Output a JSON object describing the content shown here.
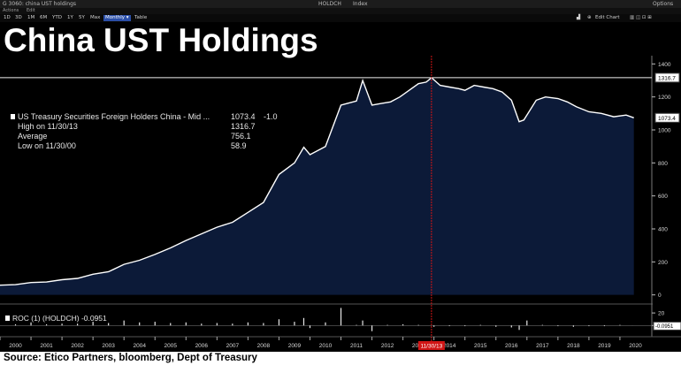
{
  "window": {
    "title": "G 3060: china UST holdings",
    "ticker": "HOLDCH",
    "ticker_type": "Index",
    "options_label": "Options"
  },
  "menu": {
    "actions_label": "Actions",
    "edit_label": "Edit"
  },
  "toolbar": {
    "ranges": [
      "1D",
      "3D",
      "1M",
      "6M",
      "YTD",
      "1Y",
      "5Y",
      "Max"
    ],
    "period_label": "Monthly",
    "table_label": "Table",
    "edit_chart_label": "Edit Chart"
  },
  "headline": "China UST Holdings",
  "legend": {
    "series_label": "US Treasury Securities Foreign Holders China - Mid ...",
    "series_value": "1073.4",
    "series_change": "-1.0",
    "high_label": "High on 11/30/13",
    "high_value": "1316.7",
    "average_label": "Average",
    "average_value": "756.1",
    "low_label": "Low on 11/30/00",
    "low_value": "58.9"
  },
  "roc": {
    "label": "ROC (1) (HOLDCH)",
    "value": "-0.0951"
  },
  "crosshair_date": "11/30/13",
  "source": "Source: Etico Partners, bloomberg, Dept of Treasury",
  "colors": {
    "area_fill": "#0c1a38",
    "line": "#ffffff",
    "crosshair": "#d11515",
    "background": "#000000"
  },
  "chart_data": {
    "type": "area",
    "x_unit": "year",
    "x": [
      2000.0,
      2000.5,
      2001.0,
      2001.5,
      2002.0,
      2002.5,
      2003.0,
      2003.5,
      2004.0,
      2004.5,
      2005.0,
      2005.5,
      2006.0,
      2006.5,
      2007.0,
      2007.5,
      2008.0,
      2008.5,
      2009.0,
      2009.5,
      2009.8,
      2010.0,
      2010.5,
      2011.0,
      2011.2,
      2011.5,
      2011.7,
      2012.0,
      2012.3,
      2012.6,
      2012.9,
      2013.2,
      2013.5,
      2013.75,
      2013.92,
      2014.2,
      2014.5,
      2014.8,
      2015.0,
      2015.3,
      2015.6,
      2015.9,
      2016.2,
      2016.5,
      2016.75,
      2016.9,
      2017.3,
      2017.6,
      2018.0,
      2018.3,
      2018.6,
      2019.0,
      2019.4,
      2019.8,
      2020.2,
      2020.45
    ],
    "values": [
      58.9,
      62,
      75,
      78,
      92,
      100,
      125,
      140,
      185,
      210,
      245,
      285,
      330,
      370,
      410,
      440,
      500,
      560,
      730,
      800,
      895,
      850,
      900,
      1150,
      1160,
      1175,
      1300,
      1150,
      1160,
      1170,
      1200,
      1240,
      1280,
      1290,
      1316.7,
      1270,
      1260,
      1250,
      1240,
      1270,
      1260,
      1250,
      1230,
      1180,
      1050,
      1060,
      1180,
      1200,
      1190,
      1170,
      1140,
      1110,
      1100,
      1080,
      1090,
      1073.4
    ],
    "ylim": [
      -50,
      1450
    ],
    "yticks": [
      0,
      200,
      400,
      600,
      800,
      1000,
      1200,
      1400
    ],
    "xlim": [
      2000,
      2021
    ],
    "xticks": [
      "2000",
      "2001",
      "2002",
      "2003",
      "2004",
      "2005",
      "2006",
      "2007",
      "2008",
      "2009",
      "2010",
      "2011",
      "2012",
      "2013",
      "2014",
      "2015",
      "2016",
      "2017",
      "2018",
      "2019",
      "2020"
    ],
    "high_line": {
      "value": 1316.7,
      "label": "1316.7"
    },
    "last_label": "1073.4",
    "roc": {
      "yticks": [
        20,
        0
      ],
      "ylim": [
        -15,
        30
      ],
      "last_label": "-0.0951",
      "x": [
        2000.5,
        2001.0,
        2001.5,
        2002.0,
        2002.5,
        2003.0,
        2003.5,
        2004.0,
        2004.5,
        2005.0,
        2005.5,
        2006.0,
        2006.5,
        2007.0,
        2007.5,
        2008.0,
        2008.5,
        2009.0,
        2009.5,
        2009.8,
        2010.0,
        2010.5,
        2011.0,
        2011.5,
        2011.7,
        2012.0,
        2012.5,
        2013.0,
        2013.5,
        2014.0,
        2014.5,
        2015.0,
        2015.5,
        2016.0,
        2016.5,
        2016.75,
        2017.0,
        2017.5,
        2018.0,
        2018.5,
        2019.0,
        2019.5,
        2020.0,
        2020.4
      ],
      "values": [
        2,
        5,
        2,
        3,
        3,
        6,
        4,
        8,
        5,
        6,
        4,
        5,
        3,
        4,
        3,
        5,
        4,
        10,
        6,
        12,
        -4,
        5,
        28,
        1,
        8,
        -9,
        1,
        2,
        1,
        -2,
        -1,
        -1,
        1,
        -2,
        -3,
        -7,
        8,
        1,
        -1,
        -2,
        -1,
        -1,
        1,
        -0.0951
      ]
    }
  }
}
